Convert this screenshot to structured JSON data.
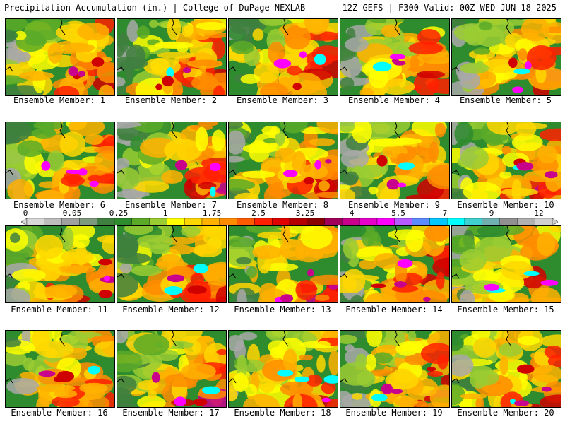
{
  "header": {
    "left": "Precipitation Accumulation (in.) | College of DuPage NEXLAB",
    "right": "12Z GEFS | F300 Valid: 00Z WED JUN 18 2025"
  },
  "panels": [
    {
      "label": "Ensemble Member: 1"
    },
    {
      "label": "Ensemble Member: 2"
    },
    {
      "label": "Ensemble Member: 3"
    },
    {
      "label": "Ensemble Member: 4"
    },
    {
      "label": "Ensemble Member: 5"
    },
    {
      "label": "Ensemble Member: 6"
    },
    {
      "label": "Ensemble Member: 7"
    },
    {
      "label": "Ensemble Member: 8"
    },
    {
      "label": "Ensemble Member: 9"
    },
    {
      "label": "Ensemble Member: 10"
    },
    {
      "label": "Ensemble Member: 11"
    },
    {
      "label": "Ensemble Member: 12"
    },
    {
      "label": "Ensemble Member: 13"
    },
    {
      "label": "Ensemble Member: 14"
    },
    {
      "label": "Ensemble Member: 15"
    },
    {
      "label": "Ensemble Member: 16"
    },
    {
      "label": "Ensemble Member: 17"
    },
    {
      "label": "Ensemble Member: 18"
    },
    {
      "label": "Ensemble Member: 19"
    },
    {
      "label": "Ensemble Member: 20"
    }
  ],
  "colorbar": {
    "ticks": [
      "0",
      "0.05",
      "0.25",
      "1",
      "1.75",
      "2.5",
      "3.25",
      "4",
      "5.5",
      "7",
      "9",
      "12"
    ],
    "colors": [
      "#d8d8d8",
      "#bdbdbd",
      "#a0a0a0",
      "#7e9a7e",
      "#3f7f3f",
      "#2e8b2e",
      "#5aaa28",
      "#9acd32",
      "#ffff00",
      "#ffd700",
      "#ffb000",
      "#ff8c00",
      "#ff5a00",
      "#ff2000",
      "#e00000",
      "#b40000",
      "#8b0000",
      "#a0005a",
      "#c8008c",
      "#e600c8",
      "#ff00ff",
      "#b45aff",
      "#5a8cff",
      "#00c8ff",
      "#00ffff",
      "#40d0d0",
      "#70b0b0",
      "#909090",
      "#b0b0b0",
      "#d0d0d0"
    ]
  }
}
